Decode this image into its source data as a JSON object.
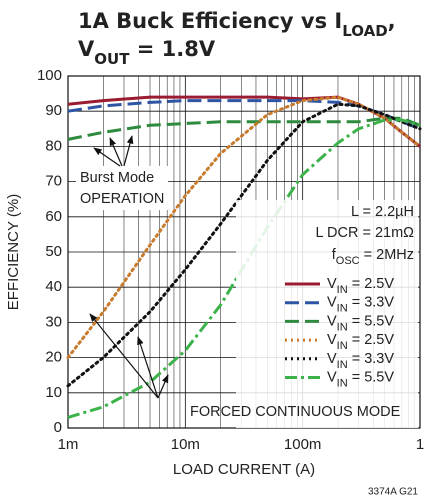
{
  "chart_data": {
    "type": "line",
    "title": [
      [
        "1A Buck Efficiency vs I",
        "LOAD",
        ","
      ],
      [
        "V",
        "OUT",
        " = 1.8V"
      ]
    ],
    "x_label": "LOAD CURRENT (A)",
    "y_label": "EFFICIENCY (%)",
    "x_log": true,
    "grid": true,
    "xlim": [
      0.001,
      1
    ],
    "ylim": [
      0,
      100
    ],
    "xticks": [
      {
        "value": 0.001,
        "label": "1m"
      },
      {
        "value": 0.01,
        "label": "10m"
      },
      {
        "value": 0.1,
        "label": "100m"
      },
      1
    ],
    "yticks": [
      0,
      10,
      20,
      30,
      40,
      50,
      60,
      70,
      80,
      90,
      100
    ],
    "x": [
      0.001,
      0.002,
      0.005,
      0.01,
      0.02,
      0.05,
      0.1,
      0.2,
      0.3,
      0.5,
      0.7,
      1
    ],
    "series": [
      {
        "name": [
          "V",
          "IN",
          " = 2.5V"
        ],
        "color": "#9b1b30",
        "dash": "solid",
        "values": [
          92,
          93,
          94,
          94,
          94,
          94,
          93.5,
          94,
          92,
          88,
          84,
          80
        ]
      },
      {
        "name": [
          "V",
          "IN",
          " = 3.3V"
        ],
        "color": "#2e55a4",
        "dash": "dashed",
        "values": [
          90,
          91.5,
          92.5,
          93,
          93,
          93,
          93,
          92.5,
          91.5,
          89,
          87,
          85
        ]
      },
      {
        "name": [
          "V",
          "IN",
          " = 5.5V"
        ],
        "color": "#2e8b3e",
        "dash": "dashed",
        "values": [
          82,
          84,
          86,
          86.5,
          87,
          87,
          87,
          87,
          87,
          88,
          88,
          86
        ]
      },
      {
        "name": [
          "V",
          "IN",
          " = 2.5V"
        ],
        "color": "#c87a2d",
        "dash": "dotted",
        "values": [
          20,
          33,
          52,
          66,
          78,
          89,
          93,
          94,
          92,
          88,
          84,
          80
        ]
      },
      {
        "name": [
          "V",
          "IN",
          " = 3.3V"
        ],
        "color": "#111111",
        "dash": "dotted",
        "values": [
          12,
          20,
          33,
          45,
          58,
          76,
          87,
          92,
          91.5,
          89,
          87,
          85
        ]
      },
      {
        "name": [
          "V",
          "IN",
          " = 5.5V"
        ],
        "color": "#3cb34a",
        "dash": "dashdot",
        "values": [
          3,
          6,
          13,
          22,
          35,
          57,
          72,
          81,
          85,
          87.5,
          87.5,
          86
        ]
      }
    ],
    "annotations": {
      "burst": [
        "Burst Mode",
        "OPERATION"
      ],
      "inductor": "L = 2.2µH",
      "dcr": "L DCR = 21mΩ",
      "fosc": [
        "f",
        "OSC",
        " = 2MHz"
      ],
      "fcm": "FORCED CONTINUOUS MODE"
    },
    "footnote": "3374A G21"
  }
}
